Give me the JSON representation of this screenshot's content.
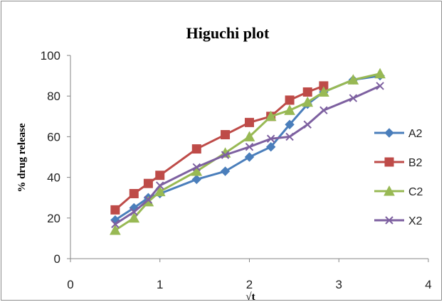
{
  "chart_data": {
    "type": "line",
    "title": "Higuchi plot",
    "xlabel": "√t",
    "ylabel": "% drug release",
    "xlim": [
      0,
      4
    ],
    "ylim": [
      0,
      100
    ],
    "x_ticks": [
      "0",
      "1",
      "2",
      "3",
      "4"
    ],
    "y_ticks": [
      "0",
      "20",
      "40",
      "60",
      "80",
      "100"
    ],
    "grid": false,
    "legend_position": "right",
    "series": [
      {
        "name": "A2",
        "color": "#4a7ebb",
        "marker": "diamond",
        "points": [
          [
            0.5,
            19
          ],
          [
            0.71,
            25
          ],
          [
            0.87,
            30
          ],
          [
            1.0,
            32
          ],
          [
            1.41,
            39
          ],
          [
            1.73,
            43
          ],
          [
            2.0,
            50
          ],
          [
            2.24,
            55
          ],
          [
            2.45,
            66
          ],
          [
            2.65,
            76
          ],
          [
            2.83,
            82
          ],
          [
            3.16,
            88
          ],
          [
            3.46,
            90
          ]
        ]
      },
      {
        "name": "B2",
        "color": "#be4b48",
        "marker": "square",
        "points": [
          [
            0.5,
            24
          ],
          [
            0.71,
            32
          ],
          [
            0.87,
            37
          ],
          [
            1.0,
            41
          ],
          [
            1.41,
            54
          ],
          [
            1.73,
            61
          ],
          [
            2.0,
            67
          ],
          [
            2.24,
            70
          ],
          [
            2.45,
            78
          ],
          [
            2.65,
            82
          ],
          [
            2.83,
            85
          ]
        ]
      },
      {
        "name": "C2",
        "color": "#98b954",
        "marker": "triangle",
        "points": [
          [
            0.5,
            14
          ],
          [
            0.71,
            20
          ],
          [
            0.87,
            28
          ],
          [
            1.0,
            33
          ],
          [
            1.41,
            43
          ],
          [
            1.73,
            52
          ],
          [
            2.0,
            60
          ],
          [
            2.24,
            70
          ],
          [
            2.45,
            73
          ],
          [
            2.65,
            77
          ],
          [
            2.83,
            82
          ],
          [
            3.16,
            88
          ],
          [
            3.46,
            91
          ]
        ]
      },
      {
        "name": "X2",
        "color": "#7d60a0",
        "marker": "x",
        "points": [
          [
            0.5,
            17
          ],
          [
            0.71,
            23
          ],
          [
            0.87,
            29
          ],
          [
            1.0,
            36
          ],
          [
            1.41,
            45
          ],
          [
            1.73,
            51
          ],
          [
            2.0,
            55
          ],
          [
            2.24,
            59
          ],
          [
            2.45,
            60
          ],
          [
            2.65,
            66
          ],
          [
            2.83,
            73
          ],
          [
            3.16,
            79
          ],
          [
            3.46,
            85
          ]
        ]
      }
    ]
  }
}
